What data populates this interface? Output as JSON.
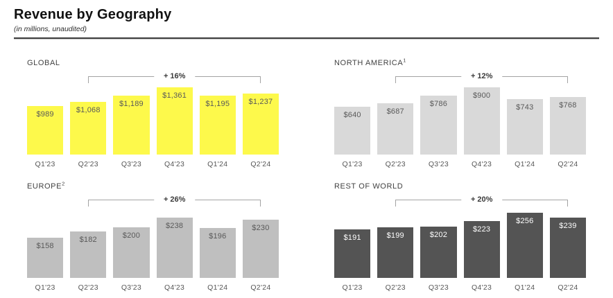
{
  "page": {
    "title": "Revenue by Geography",
    "subtitle": "(in millions, unaudited)"
  },
  "colors": {
    "brand_yellow": "#FDF94B",
    "light_gray_bar": "#D9D9D9",
    "medium_gray_bar": "#BFBFBF",
    "dark_gray_bar": "#545454",
    "label_on_light": "#595959",
    "label_on_dark": "#FFFFFF",
    "bracket_line": "#A3A3A3"
  },
  "chart_data": [
    {
      "type": "bar",
      "title": "GLOBAL",
      "footnote": "",
      "categories": [
        "Q1'23",
        "Q2'23",
        "Q3'23",
        "Q4'23",
        "Q1'24",
        "Q2'24"
      ],
      "values": [
        989,
        1068,
        1189,
        1361,
        1195,
        1237
      ],
      "value_labels": [
        "$989",
        "$1,068",
        "$1,189",
        "$1,361",
        "$1,195",
        "$1,237"
      ],
      "growth_annotation": "+ 16%",
      "growth_span": {
        "from": "Q2'23",
        "to": "Q2'24"
      },
      "bar_color": "#FDF94B",
      "value_label_color": "#595959",
      "axis_max": 1361,
      "legend": "none",
      "grid": "off"
    },
    {
      "type": "bar",
      "title": "NORTH AMERICA",
      "footnote": "1",
      "categories": [
        "Q1'23",
        "Q2'23",
        "Q3'23",
        "Q4'23",
        "Q1'24",
        "Q2'24"
      ],
      "values": [
        640,
        687,
        786,
        900,
        743,
        768
      ],
      "value_labels": [
        "$640",
        "$687",
        "$786",
        "$900",
        "$743",
        "$768"
      ],
      "growth_annotation": "+ 12%",
      "growth_span": {
        "from": "Q2'23",
        "to": "Q2'24"
      },
      "bar_color": "#D9D9D9",
      "value_label_color": "#595959",
      "axis_max": 900,
      "legend": "none",
      "grid": "off"
    },
    {
      "type": "bar",
      "title": "EUROPE",
      "footnote": "2",
      "categories": [
        "Q1'23",
        "Q2'23",
        "Q3'23",
        "Q4'23",
        "Q1'24",
        "Q2'24"
      ],
      "values": [
        158,
        182,
        200,
        238,
        196,
        230
      ],
      "value_labels": [
        "$158",
        "$182",
        "$200",
        "$238",
        "$196",
        "$230"
      ],
      "growth_annotation": "+ 26%",
      "growth_span": {
        "from": "Q2'23",
        "to": "Q2'24"
      },
      "bar_color": "#BFBFBF",
      "value_label_color": "#595959",
      "axis_max": 265,
      "legend": "none",
      "grid": "off"
    },
    {
      "type": "bar",
      "title": "REST OF WORLD",
      "footnote": "",
      "categories": [
        "Q1'23",
        "Q2'23",
        "Q3'23",
        "Q4'23",
        "Q1'24",
        "Q2'24"
      ],
      "values": [
        191,
        199,
        202,
        223,
        256,
        239
      ],
      "value_labels": [
        "$191",
        "$199",
        "$202",
        "$223",
        "$256",
        "$239"
      ],
      "growth_annotation": "+ 20%",
      "growth_span": {
        "from": "Q2'23",
        "to": "Q2'24"
      },
      "bar_color": "#545454",
      "value_label_color": "#FFFFFF",
      "axis_max": 265,
      "legend": "none",
      "grid": "off"
    }
  ]
}
